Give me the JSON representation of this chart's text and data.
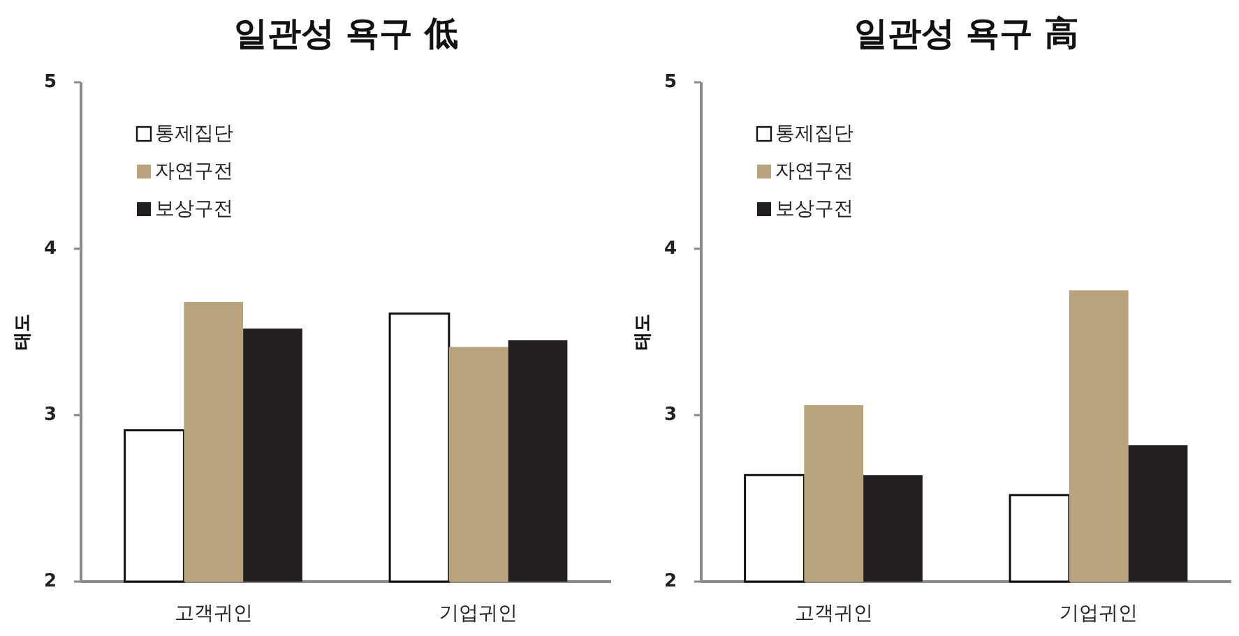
{
  "chart_data": [
    {
      "type": "bar",
      "title": "일관성 욕구 低",
      "ylabel": "태도",
      "categories": [
        "고객귀인",
        "기업귀인"
      ],
      "ylim": [
        2,
        5
      ],
      "yticks": [
        2,
        3,
        4,
        5
      ],
      "legend": "top left",
      "series": [
        {
          "name": "통제집단",
          "color": "#ffffff",
          "values": [
            2.91,
            3.61
          ]
        },
        {
          "name": "자연구전",
          "color": "#b9a37c",
          "values": [
            3.68,
            3.41
          ]
        },
        {
          "name": "보상구전",
          "color": "#231f20",
          "values": [
            3.52,
            3.45
          ]
        }
      ]
    },
    {
      "type": "bar",
      "title": "일관성 욕구 高",
      "ylabel": "태도",
      "categories": [
        "고객귀인",
        "기업귀인"
      ],
      "ylim": [
        2,
        5
      ],
      "yticks": [
        2,
        3,
        4,
        5
      ],
      "legend": "top left",
      "series": [
        {
          "name": "통제집단",
          "color": "#ffffff",
          "values": [
            2.64,
            2.52
          ]
        },
        {
          "name": "자연구전",
          "color": "#b9a37c",
          "values": [
            3.06,
            3.75
          ]
        },
        {
          "name": "보상구전",
          "color": "#231f20",
          "values": [
            2.64,
            2.82
          ]
        }
      ]
    }
  ]
}
